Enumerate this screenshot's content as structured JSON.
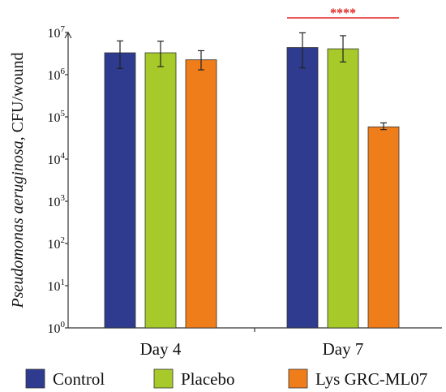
{
  "chart_data": {
    "type": "bar",
    "y_scale": "log10",
    "ylim": [
      1,
      10000000
    ],
    "ylabel_species": "Pseudomonas aeruginosa",
    "ylabel_unit": ", CFU/wound",
    "y_ticks": [
      {
        "base": "10",
        "exp": "0"
      },
      {
        "base": "10",
        "exp": "1"
      },
      {
        "base": "10",
        "exp": "2"
      },
      {
        "base": "10",
        "exp": "3"
      },
      {
        "base": "10",
        "exp": "4"
      },
      {
        "base": "10",
        "exp": "5"
      },
      {
        "base": "10",
        "exp": "6"
      },
      {
        "base": "10",
        "exp": "7"
      }
    ],
    "categories": [
      "Day 4",
      "Day 7"
    ],
    "series": [
      {
        "name": "Control",
        "color": "#2e3b8f",
        "values": [
          3300000,
          4400000
        ],
        "err_low": [
          1400000,
          1450000
        ],
        "err_high": [
          6300000,
          9800000
        ]
      },
      {
        "name": "Placebo",
        "color": "#a8c92a",
        "values": [
          3300000,
          4100000
        ],
        "err_low": [
          1550000,
          2000000
        ],
        "err_high": [
          6200000,
          8400000
        ]
      },
      {
        "name": "Lys GRC-ML07",
        "color": "#ef7d1a",
        "values": [
          2250000,
          58000
        ],
        "err_low": [
          1300000,
          50000
        ],
        "err_high": [
          3700000,
          72000
        ]
      }
    ],
    "significance": {
      "label": "****",
      "color": "#e0211f",
      "category": "Day 7"
    },
    "grid": false,
    "legend_position": "bottom"
  }
}
